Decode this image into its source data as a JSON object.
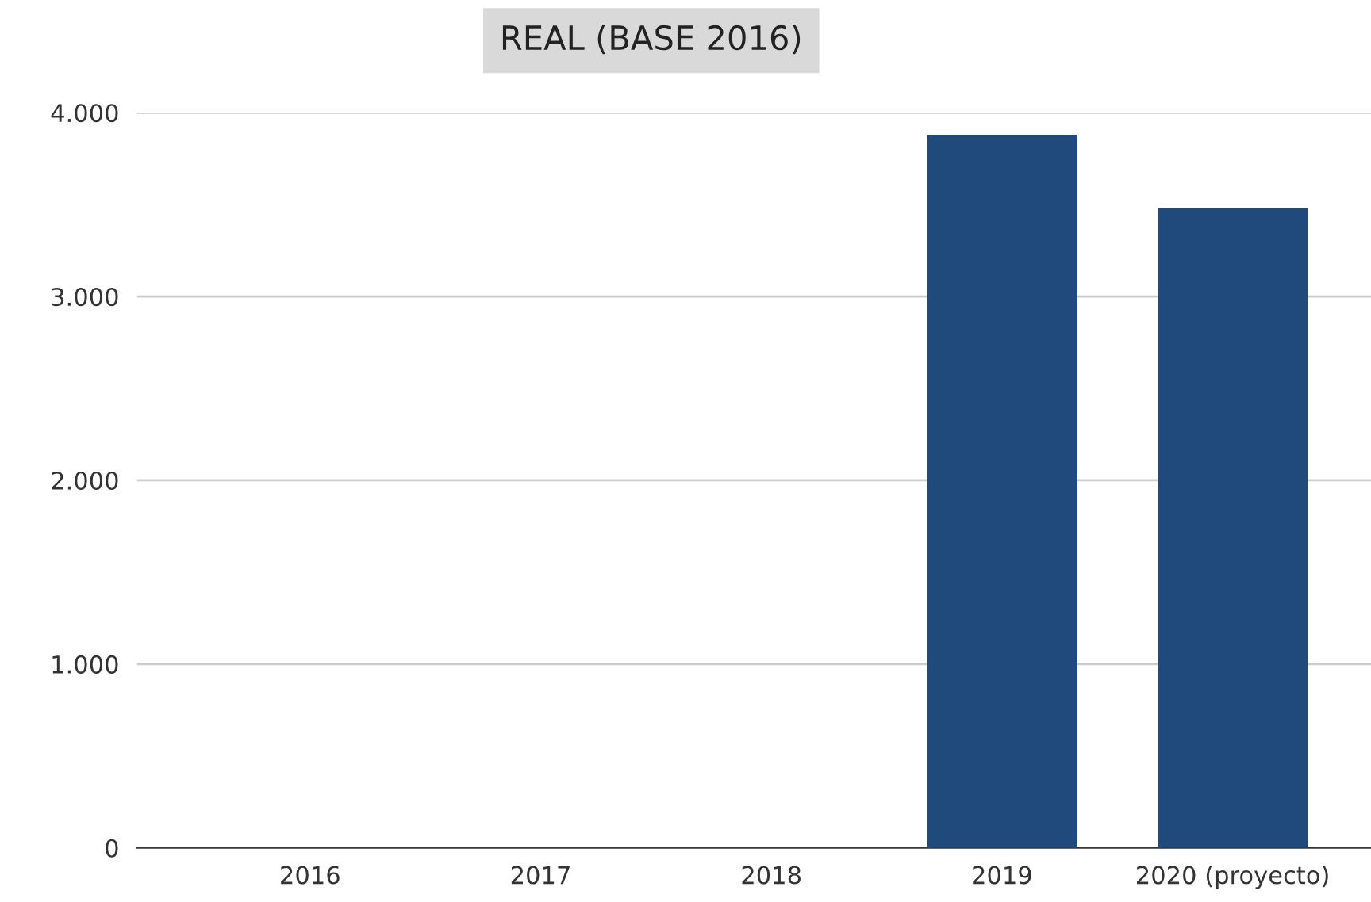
{
  "chart_data": {
    "type": "bar",
    "title": "REAL (BASE 2016)",
    "categories": [
      "2016",
      "2017",
      "2018",
      "2019",
      "2020 (proyecto)"
    ],
    "values": [
      0,
      0,
      0,
      3880,
      3480
    ],
    "color": "#214a7c",
    "ylim": [
      0,
      4000
    ],
    "yticks": [
      {
        "value": 0,
        "label": "0"
      },
      {
        "value": 1000,
        "label": "1.000"
      },
      {
        "value": 2000,
        "label": "2.000"
      },
      {
        "value": 3000,
        "label": "3.000"
      },
      {
        "value": 4000,
        "label": "4.000"
      }
    ],
    "grid": "y"
  }
}
